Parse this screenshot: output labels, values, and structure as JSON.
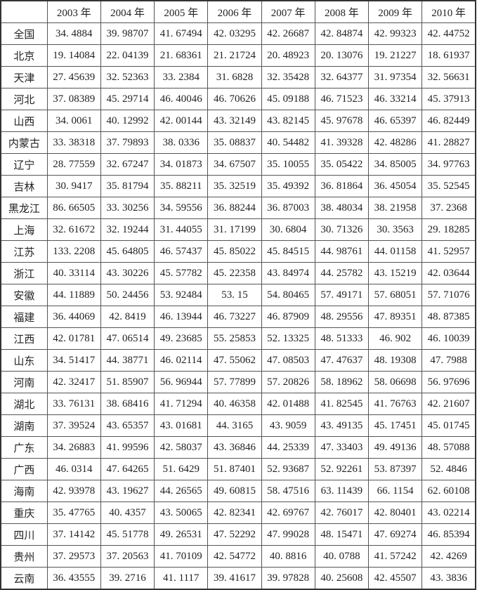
{
  "table": {
    "headers": [
      "",
      "2003 年",
      "2004 年",
      "2005 年",
      "2006 年",
      "2007 年",
      "2008 年",
      "2009 年",
      "2010 年"
    ],
    "rows": [
      {
        "region": "全国",
        "values": [
          "34. 4884",
          "39. 98707",
          "41. 67494",
          "42. 03295",
          "42. 26687",
          "42. 84874",
          "42. 99323",
          "42. 44752"
        ]
      },
      {
        "region": "北京",
        "values": [
          "19. 14084",
          "22. 04139",
          "21. 68361",
          "21. 21724",
          "20. 48923",
          "20. 13076",
          "19. 21227",
          "18. 61937"
        ]
      },
      {
        "region": "天津",
        "values": [
          "27. 45639",
          "32. 52363",
          "33. 2384",
          "31. 6828",
          "32. 35428",
          "32. 64377",
          "31. 97354",
          "32. 56631"
        ]
      },
      {
        "region": "河北",
        "values": [
          "37. 08389",
          "45. 29714",
          "46. 40046",
          "46. 70626",
          "45. 09188",
          "46. 71523",
          "46. 33214",
          "45. 37913"
        ]
      },
      {
        "region": "山西",
        "values": [
          "34. 0061",
          "40. 12992",
          "42. 00144",
          "43. 32149",
          "43. 82145",
          "45. 97678",
          "46. 65397",
          "46. 82449"
        ]
      },
      {
        "region": "内蒙古",
        "values": [
          "33. 38318",
          "37. 79893",
          "38. 0336",
          "35. 08837",
          "40. 54482",
          "41. 39328",
          "42. 48286",
          "41. 28827"
        ]
      },
      {
        "region": "辽宁",
        "values": [
          "28. 77559",
          "32. 67247",
          "34. 01873",
          "34. 67507",
          "35. 10055",
          "35. 05422",
          "34. 85005",
          "34. 97763"
        ]
      },
      {
        "region": "吉林",
        "values": [
          "30. 9417",
          "35. 81794",
          "35. 88211",
          "35. 32519",
          "35. 49392",
          "36. 81864",
          "36. 45054",
          "35. 52545"
        ]
      },
      {
        "region": "黑龙江",
        "values": [
          "86. 66505",
          "33. 30256",
          "34. 59556",
          "36. 88244",
          "36. 87003",
          "38. 48034",
          "38. 21958",
          "37. 2368"
        ]
      },
      {
        "region": "上海",
        "values": [
          "32. 61672",
          "32. 19244",
          "31. 44055",
          "31. 17199",
          "30. 6804",
          "30. 71326",
          "30. 3563",
          "29. 18285"
        ]
      },
      {
        "region": "江苏",
        "values": [
          "133. 2208",
          "45. 64805",
          "46. 57437",
          "45. 85022",
          "45. 84515",
          "44. 98761",
          "44. 01158",
          "41. 52957"
        ]
      },
      {
        "region": "浙江",
        "values": [
          "40. 33114",
          "43. 30226",
          "45. 57782",
          "45. 22358",
          "43. 84974",
          "44. 25782",
          "43. 15219",
          "42. 03644"
        ]
      },
      {
        "region": "安徽",
        "values": [
          "44. 11889",
          "50. 24456",
          "53. 92484",
          "53. 15",
          "54. 80465",
          "57. 49171",
          "57. 68051",
          "57. 71076"
        ]
      },
      {
        "region": "福建",
        "values": [
          "36. 44069",
          "42. 8419",
          "46. 13944",
          "46. 73227",
          "46. 87909",
          "48. 29556",
          "47. 89351",
          "48. 87385"
        ]
      },
      {
        "region": "江西",
        "values": [
          "42. 01781",
          "47. 06514",
          "49. 23685",
          "55. 25853",
          "52. 13325",
          "48. 51333",
          "46. 902",
          "46. 10039"
        ]
      },
      {
        "region": "山东",
        "values": [
          "34. 51417",
          "44. 38771",
          "46. 02114",
          "47. 55062",
          "47. 08503",
          "47. 47637",
          "48. 19308",
          "47. 7988"
        ]
      },
      {
        "region": "河南",
        "values": [
          "42. 32417",
          "51. 85907",
          "56. 96944",
          "57. 77899",
          "57. 20826",
          "58. 18962",
          "58. 06698",
          "56. 97696"
        ]
      },
      {
        "region": "湖北",
        "values": [
          "33. 76131",
          "38. 68416",
          "41. 71294",
          "40. 46358",
          "42. 01488",
          "41. 82545",
          "41. 76763",
          "42. 21607"
        ]
      },
      {
        "region": "湖南",
        "values": [
          "37. 39524",
          "43. 65357",
          "43. 01681",
          "44. 3165",
          "43. 9059",
          "43. 49135",
          "45. 17451",
          "45. 01745"
        ]
      },
      {
        "region": "广东",
        "values": [
          "34. 26883",
          "41. 99596",
          "42. 58037",
          "43. 36846",
          "44. 25339",
          "47. 33403",
          "49. 49136",
          "48. 57088"
        ]
      },
      {
        "region": "广西",
        "values": [
          "46. 0314",
          "47. 64265",
          "51. 6429",
          "51. 87401",
          "52. 93687",
          "52. 92261",
          "53. 87397",
          "52. 4846"
        ]
      },
      {
        "region": "海南",
        "values": [
          "42. 93978",
          "43. 19627",
          "44. 26565",
          "49. 60815",
          "58. 47516",
          "63. 11439",
          "66. 1154",
          "62. 60108"
        ]
      },
      {
        "region": "重庆",
        "values": [
          "35. 47765",
          "40. 4357",
          "43. 50065",
          "42. 82341",
          "42. 69767",
          "42. 76017",
          "42. 80401",
          "43. 02214"
        ]
      },
      {
        "region": "四川",
        "values": [
          "37. 14142",
          "45. 51778",
          "49. 26531",
          "47. 52292",
          "47. 99028",
          "48. 15471",
          "47. 69274",
          "46. 85394"
        ]
      },
      {
        "region": "贵州",
        "values": [
          "37. 29573",
          "37. 20563",
          "41. 70109",
          "42. 54772",
          "40. 8816",
          "40. 0788",
          "41. 57242",
          "42. 4269"
        ]
      },
      {
        "region": "云南",
        "values": [
          "36. 43555",
          "39. 2716",
          "41. 1117",
          "39. 41617",
          "39. 97828",
          "40. 25608",
          "42. 45507",
          "43. 3836"
        ]
      }
    ]
  }
}
